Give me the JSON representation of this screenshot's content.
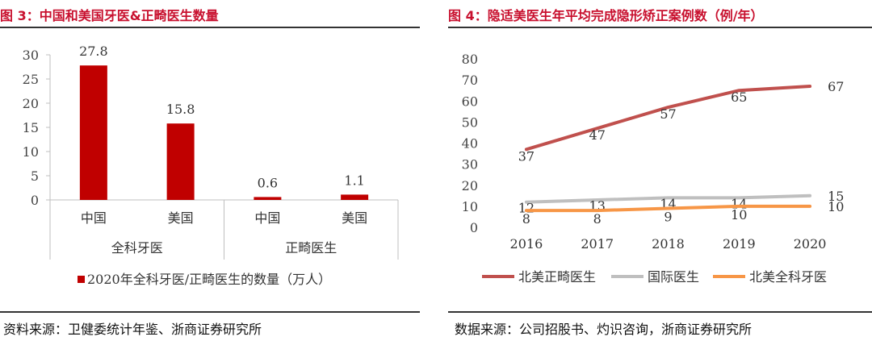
{
  "left": {
    "figure_title": "图 3：中国和美国牙医&正畸医生数量",
    "source": "资料来源：卫健委统计年鉴、浙商证券研究所",
    "chart_data": {
      "type": "bar",
      "y_ticks": [
        "0",
        "5",
        "10",
        "15",
        "20",
        "25",
        "30"
      ],
      "ylim": [
        0,
        30
      ],
      "categories": [
        "中国",
        "美国",
        "中国",
        "美国"
      ],
      "groups": [
        {
          "label": "全科牙医",
          "categories": [
            "中国",
            "美国"
          ]
        },
        {
          "label": "正畸医生",
          "categories": [
            "中国",
            "美国"
          ]
        }
      ],
      "series": [
        {
          "name": "2020年全科牙医/正畸医生的数量（万人）",
          "values": [
            27.8,
            15.8,
            0.6,
            1.1
          ],
          "labels": [
            "27.8",
            "15.8",
            "0.6",
            "1.1"
          ],
          "color": "#c00000"
        }
      ],
      "legend_position": "bottom",
      "grid": false
    }
  },
  "right": {
    "figure_title": "图 4：隐适美医生年平均完成隐形矫正案例数（例/年）",
    "source": "数据来源：公司招股书、灼识咨询，浙商证券研究所",
    "chart_data": {
      "type": "line",
      "x": [
        "2016",
        "2017",
        "2018",
        "2019",
        "2020"
      ],
      "y_ticks": [
        "0",
        "10",
        "20",
        "30",
        "40",
        "50",
        "60",
        "70",
        "80"
      ],
      "ylim": [
        0,
        80
      ],
      "series": [
        {
          "name": "北美正畸医生",
          "values": [
            37,
            47,
            57,
            65,
            67
          ],
          "labels": [
            "37",
            "47",
            "57",
            "65",
            "67"
          ],
          "color": "#c0504d"
        },
        {
          "name": "国际医生",
          "values": [
            12,
            13,
            14,
            14,
            15
          ],
          "labels": [
            "12",
            "13",
            "14",
            "14",
            "15"
          ],
          "color": "#bfbfbf"
        },
        {
          "name": "北美全科牙医",
          "values": [
            8,
            8,
            9,
            10,
            10
          ],
          "labels": [
            "8",
            "8",
            "9",
            "10",
            "10"
          ],
          "color": "#f79646"
        }
      ],
      "legend_position": "bottom",
      "grid": false
    }
  }
}
